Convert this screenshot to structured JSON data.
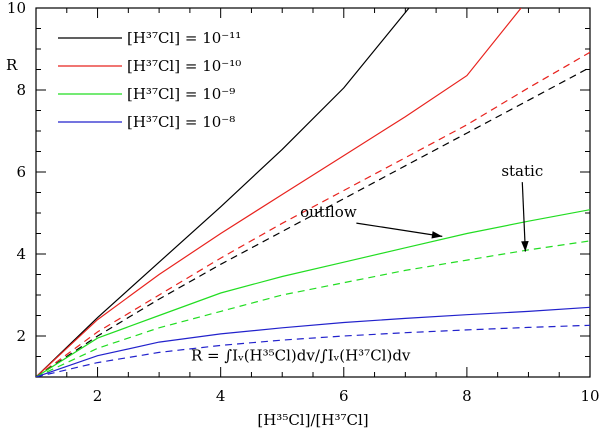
{
  "chart_data": {
    "type": "line",
    "xlabel": "[H³⁵Cl]/[H³⁷Cl]",
    "ylabel": "R",
    "xlim": [
      1,
      10
    ],
    "ylim": [
      1,
      10
    ],
    "xticks": [
      2,
      4,
      6,
      8,
      10
    ],
    "yticks": [
      2,
      4,
      6,
      8,
      10
    ],
    "grid": false,
    "legend_position": "top-left",
    "legend": [
      {
        "label": "[H³⁷Cl]  =  10⁻¹¹",
        "color": "#000000"
      },
      {
        "label": "[H³⁷Cl]  =  10⁻¹⁰",
        "color": "#e8231e"
      },
      {
        "label": "[H³⁷Cl]  =  10⁻⁹",
        "color": "#22dd22"
      },
      {
        "label": "[H³⁷Cl]  =  10⁻⁸",
        "color": "#2222cc"
      }
    ],
    "series": [
      {
        "name": "[H³⁷Cl] = 10⁻¹¹ outflow",
        "color": "#000000",
        "dash": false,
        "x": [
          1,
          2,
          3,
          4,
          5,
          6,
          7.06
        ],
        "y": [
          1,
          2.45,
          3.8,
          5.15,
          6.55,
          8.05,
          10
        ]
      },
      {
        "name": "[H³⁷Cl] = 10⁻¹⁰ outflow",
        "color": "#e8231e",
        "dash": false,
        "x": [
          1,
          2,
          3,
          4,
          5,
          6,
          7,
          8,
          8.88
        ],
        "y": [
          1,
          2.4,
          3.5,
          4.5,
          5.45,
          6.4,
          7.35,
          8.35,
          10
        ]
      },
      {
        "name": "[H³⁷Cl] = 10⁻¹⁰ static",
        "color": "#e8231e",
        "dash": true,
        "x": [
          1,
          2,
          3,
          4,
          5,
          6,
          7,
          8,
          9,
          10
        ],
        "y": [
          1,
          2.1,
          3.0,
          3.9,
          4.75,
          5.55,
          6.35,
          7.15,
          8.05,
          8.92
        ]
      },
      {
        "name": "[H³⁷Cl] = 10⁻¹¹ static",
        "color": "#000000",
        "dash": true,
        "x": [
          1,
          2,
          3,
          4,
          5,
          6,
          7,
          8,
          9,
          10
        ],
        "y": [
          1,
          2.0,
          2.9,
          3.75,
          4.55,
          5.35,
          6.15,
          6.95,
          7.75,
          8.55
        ]
      },
      {
        "name": "[H³⁷Cl] = 10⁻⁹ outflow",
        "color": "#22dd22",
        "dash": false,
        "x": [
          1,
          2,
          3,
          4,
          5,
          6,
          7,
          8,
          9,
          10
        ],
        "y": [
          1,
          1.95,
          2.5,
          3.05,
          3.45,
          3.8,
          4.15,
          4.5,
          4.8,
          5.08
        ]
      },
      {
        "name": "[H³⁷Cl] = 10⁻⁹ static",
        "color": "#22dd22",
        "dash": true,
        "x": [
          1,
          2,
          3,
          4,
          5,
          6,
          7,
          8,
          9,
          10
        ],
        "y": [
          1,
          1.7,
          2.2,
          2.6,
          3.0,
          3.3,
          3.6,
          3.85,
          4.1,
          4.32
        ]
      },
      {
        "name": "[H³⁷Cl] = 10⁻⁸ outflow",
        "color": "#2222cc",
        "dash": false,
        "x": [
          1,
          2,
          3,
          4,
          5,
          6,
          7,
          8,
          9,
          10
        ],
        "y": [
          1,
          1.52,
          1.85,
          2.05,
          2.2,
          2.33,
          2.43,
          2.52,
          2.6,
          2.7
        ]
      },
      {
        "name": "[H³⁷Cl] = 10⁻⁸ static",
        "color": "#2222cc",
        "dash": true,
        "x": [
          1,
          2,
          3,
          4,
          5,
          6,
          7,
          8,
          9,
          10
        ],
        "y": [
          1,
          1.35,
          1.6,
          1.77,
          1.9,
          2.0,
          2.08,
          2.15,
          2.21,
          2.26
        ]
      }
    ],
    "annotations": [
      {
        "text": "outflow",
        "x": 5.75,
        "y": 4.9,
        "arrow_to": [
          7.6,
          4.43
        ]
      },
      {
        "text": "static",
        "x": 8.9,
        "y": 5.9,
        "arrow_to": [
          8.95,
          4.06
        ]
      },
      {
        "text": "R  =  ∫Iᵥ(H³⁵Cl)dv/∫Iᵥ(H³⁷Cl)dv",
        "x": 5.3,
        "y": 1.4
      }
    ]
  }
}
